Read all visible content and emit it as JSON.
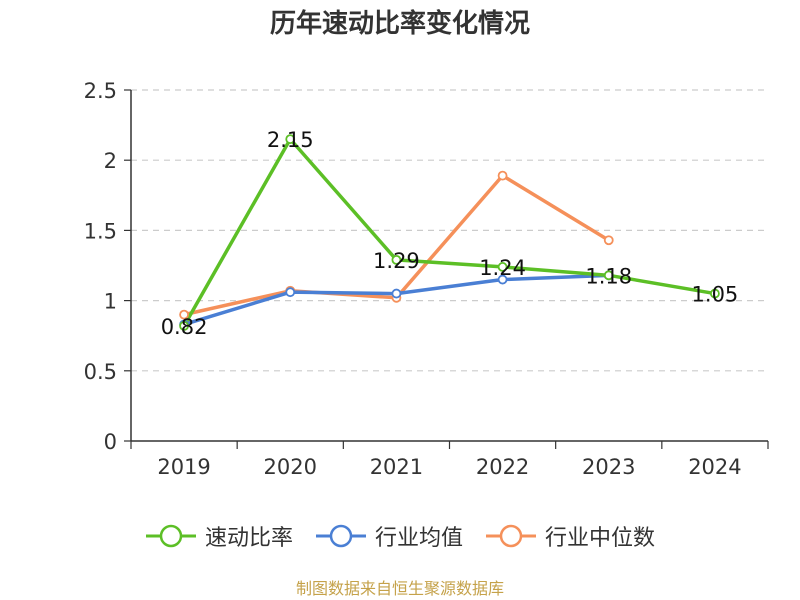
{
  "chart_data": {
    "type": "line",
    "title": "历年速动比率变化情况",
    "categories": [
      "2019",
      "2020",
      "2021",
      "2022",
      "2023",
      "2024"
    ],
    "ylim": [
      0,
      2.5
    ],
    "yticks": [
      "0",
      "0.5",
      "1",
      "1.5",
      "2",
      "2.5"
    ],
    "grid": true,
    "legend_position": "bottom",
    "series": [
      {
        "name": "速动比率",
        "color": "#5cbf26",
        "values": [
          0.82,
          2.15,
          1.29,
          1.24,
          1.18,
          1.05
        ],
        "labels": [
          "0.82",
          "2.15",
          "1.29",
          "1.24",
          "1.18",
          "1.05"
        ]
      },
      {
        "name": "行业均值",
        "color": "#4a7fd4",
        "values": [
          0.83,
          1.06,
          1.05,
          1.15,
          1.18,
          null
        ]
      },
      {
        "name": "行业中位数",
        "color": "#f5905a",
        "values": [
          0.9,
          1.07,
          1.02,
          1.89,
          1.43,
          null
        ]
      }
    ]
  },
  "source": {
    "text": "制图数据来自恒生聚源数据库",
    "color": "#c5a24a"
  }
}
